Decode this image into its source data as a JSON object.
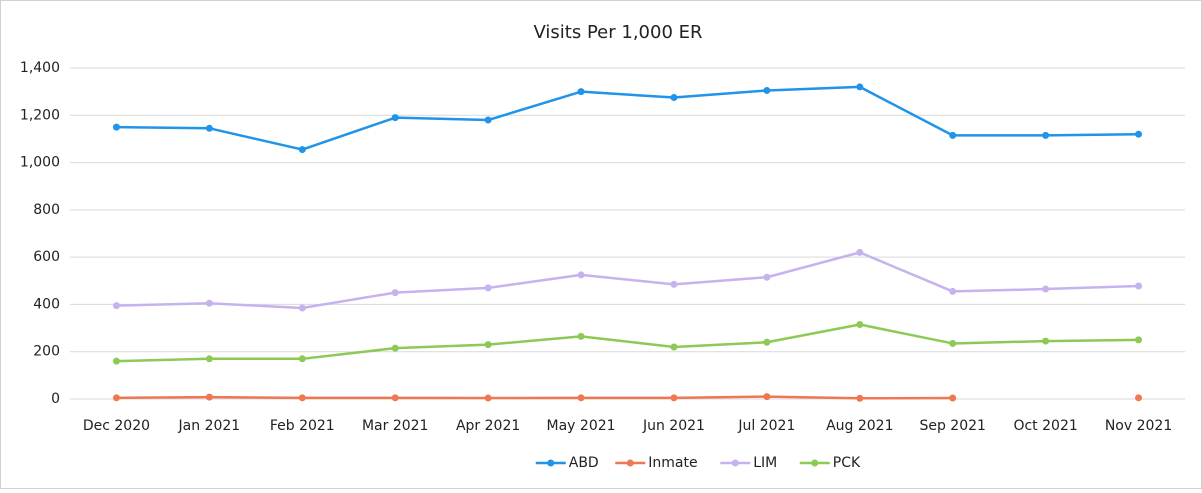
{
  "chart_data": {
    "type": "line",
    "title": "Visits Per 1,000 ER",
    "categories": [
      "Dec 2020",
      "Jan 2021",
      "Feb 2021",
      "Mar 2021",
      "Apr 2021",
      "May 2021",
      "Jun 2021",
      "Jul 2021",
      "Aug 2021",
      "Sep 2021",
      "Oct 2021",
      "Nov 2021"
    ],
    "series": [
      {
        "name": "ABD",
        "color": "#1f94e8",
        "values": [
          1150,
          1145,
          1055,
          1190,
          1180,
          1300,
          1275,
          1305,
          1320,
          1115,
          1115,
          1120
        ]
      },
      {
        "name": "Inmate",
        "color": "#ef7852",
        "values": [
          5,
          8,
          5,
          5,
          4,
          5,
          5,
          10,
          3,
          4,
          null,
          5
        ]
      },
      {
        "name": "LIM",
        "color": "#c6b2ef",
        "values": [
          395,
          405,
          385,
          450,
          470,
          525,
          485,
          515,
          620,
          455,
          465,
          478
        ]
      },
      {
        "name": "PCK",
        "color": "#8cca55",
        "values": [
          160,
          170,
          170,
          215,
          230,
          265,
          220,
          240,
          315,
          235,
          245,
          250
        ]
      }
    ],
    "ylim": [
      0,
      1400
    ],
    "yticks": [
      0,
      200,
      400,
      600,
      800,
      {
        "value": 1000,
        "label": "1,000"
      },
      {
        "value": 1200,
        "label": "1,200"
      },
      {
        "value": 1400,
        "label": "1,400"
      }
    ],
    "grid": true,
    "legend": "bottom"
  }
}
